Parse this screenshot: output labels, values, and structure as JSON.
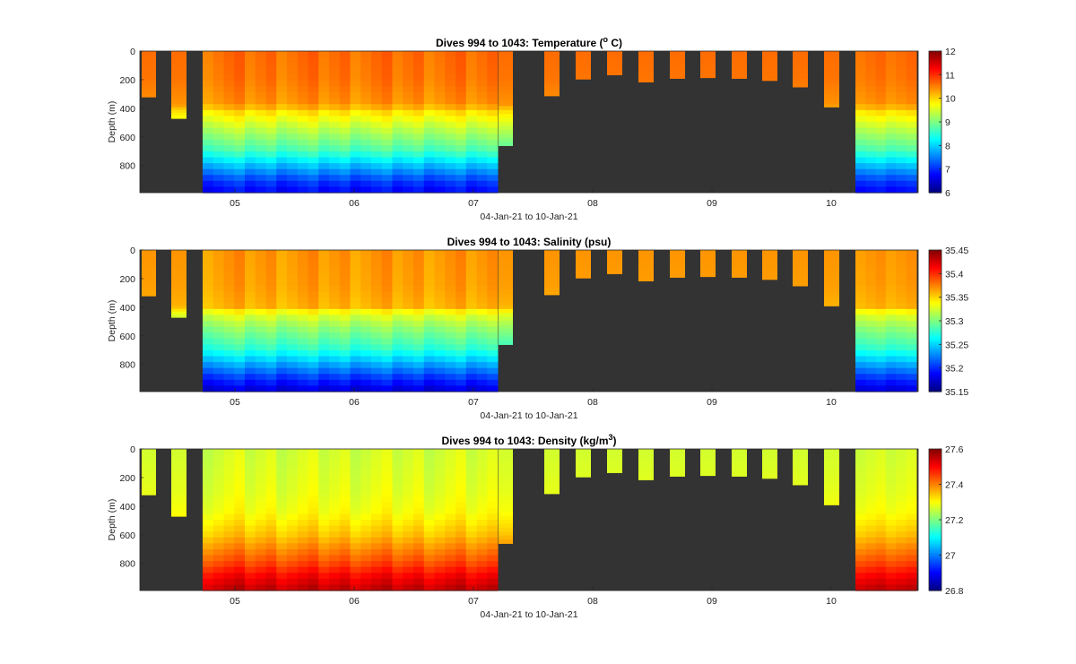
{
  "chart_data": [
    {
      "type": "heatmap",
      "title_main": "Dives 994 to 1043: Temperature (",
      "title_sup": "o",
      "title_tail": " C)",
      "xlabel": "04-Jan-21 to 10-Jan-21",
      "ylabel": "Depth (m)",
      "x_ticks": [
        "05",
        "06",
        "07",
        "08",
        "09",
        "10"
      ],
      "y_ticks": [
        "0",
        "200",
        "400",
        "600",
        "800"
      ],
      "ylim": [
        0,
        990
      ],
      "cbar_ticks": [
        "12",
        "11",
        "10",
        "9",
        "8",
        "7",
        "6"
      ],
      "clim": [
        6,
        12
      ],
      "colormap": "jet",
      "background_color": "#333333"
    },
    {
      "type": "heatmap",
      "title_main": "Dives 994 to 1043: Salinity (psu)",
      "title_sup": "",
      "title_tail": "",
      "xlabel": "04-Jan-21 to 10-Jan-21",
      "ylabel": "Depth (m)",
      "x_ticks": [
        "05",
        "06",
        "07",
        "08",
        "09",
        "10"
      ],
      "y_ticks": [
        "0",
        "200",
        "400",
        "600",
        "800"
      ],
      "ylim": [
        0,
        990
      ],
      "cbar_ticks": [
        "35.45",
        "35.4",
        "35.35",
        "35.3",
        "35.25",
        "35.2",
        "35.15"
      ],
      "clim": [
        35.15,
        35.45
      ],
      "colormap": "jet",
      "background_color": "#333333"
    },
    {
      "type": "heatmap",
      "title_main": "Dives 994 to 1043: Density (kg/m",
      "title_sup": "3",
      "title_tail": ")",
      "xlabel": "04-Jan-21 to 10-Jan-21",
      "ylabel": "Depth (m)",
      "x_ticks": [
        "05",
        "06",
        "07",
        "08",
        "09",
        "10"
      ],
      "y_ticks": [
        "0",
        "200",
        "400",
        "600",
        "800"
      ],
      "ylim": [
        0,
        990
      ],
      "cbar_ticks": [
        "27.6",
        "27.4",
        "27.2",
        "27",
        "26.8"
      ],
      "clim": [
        26.8,
        27.6
      ],
      "colormap": "jet",
      "background_color": "#333333"
    }
  ]
}
